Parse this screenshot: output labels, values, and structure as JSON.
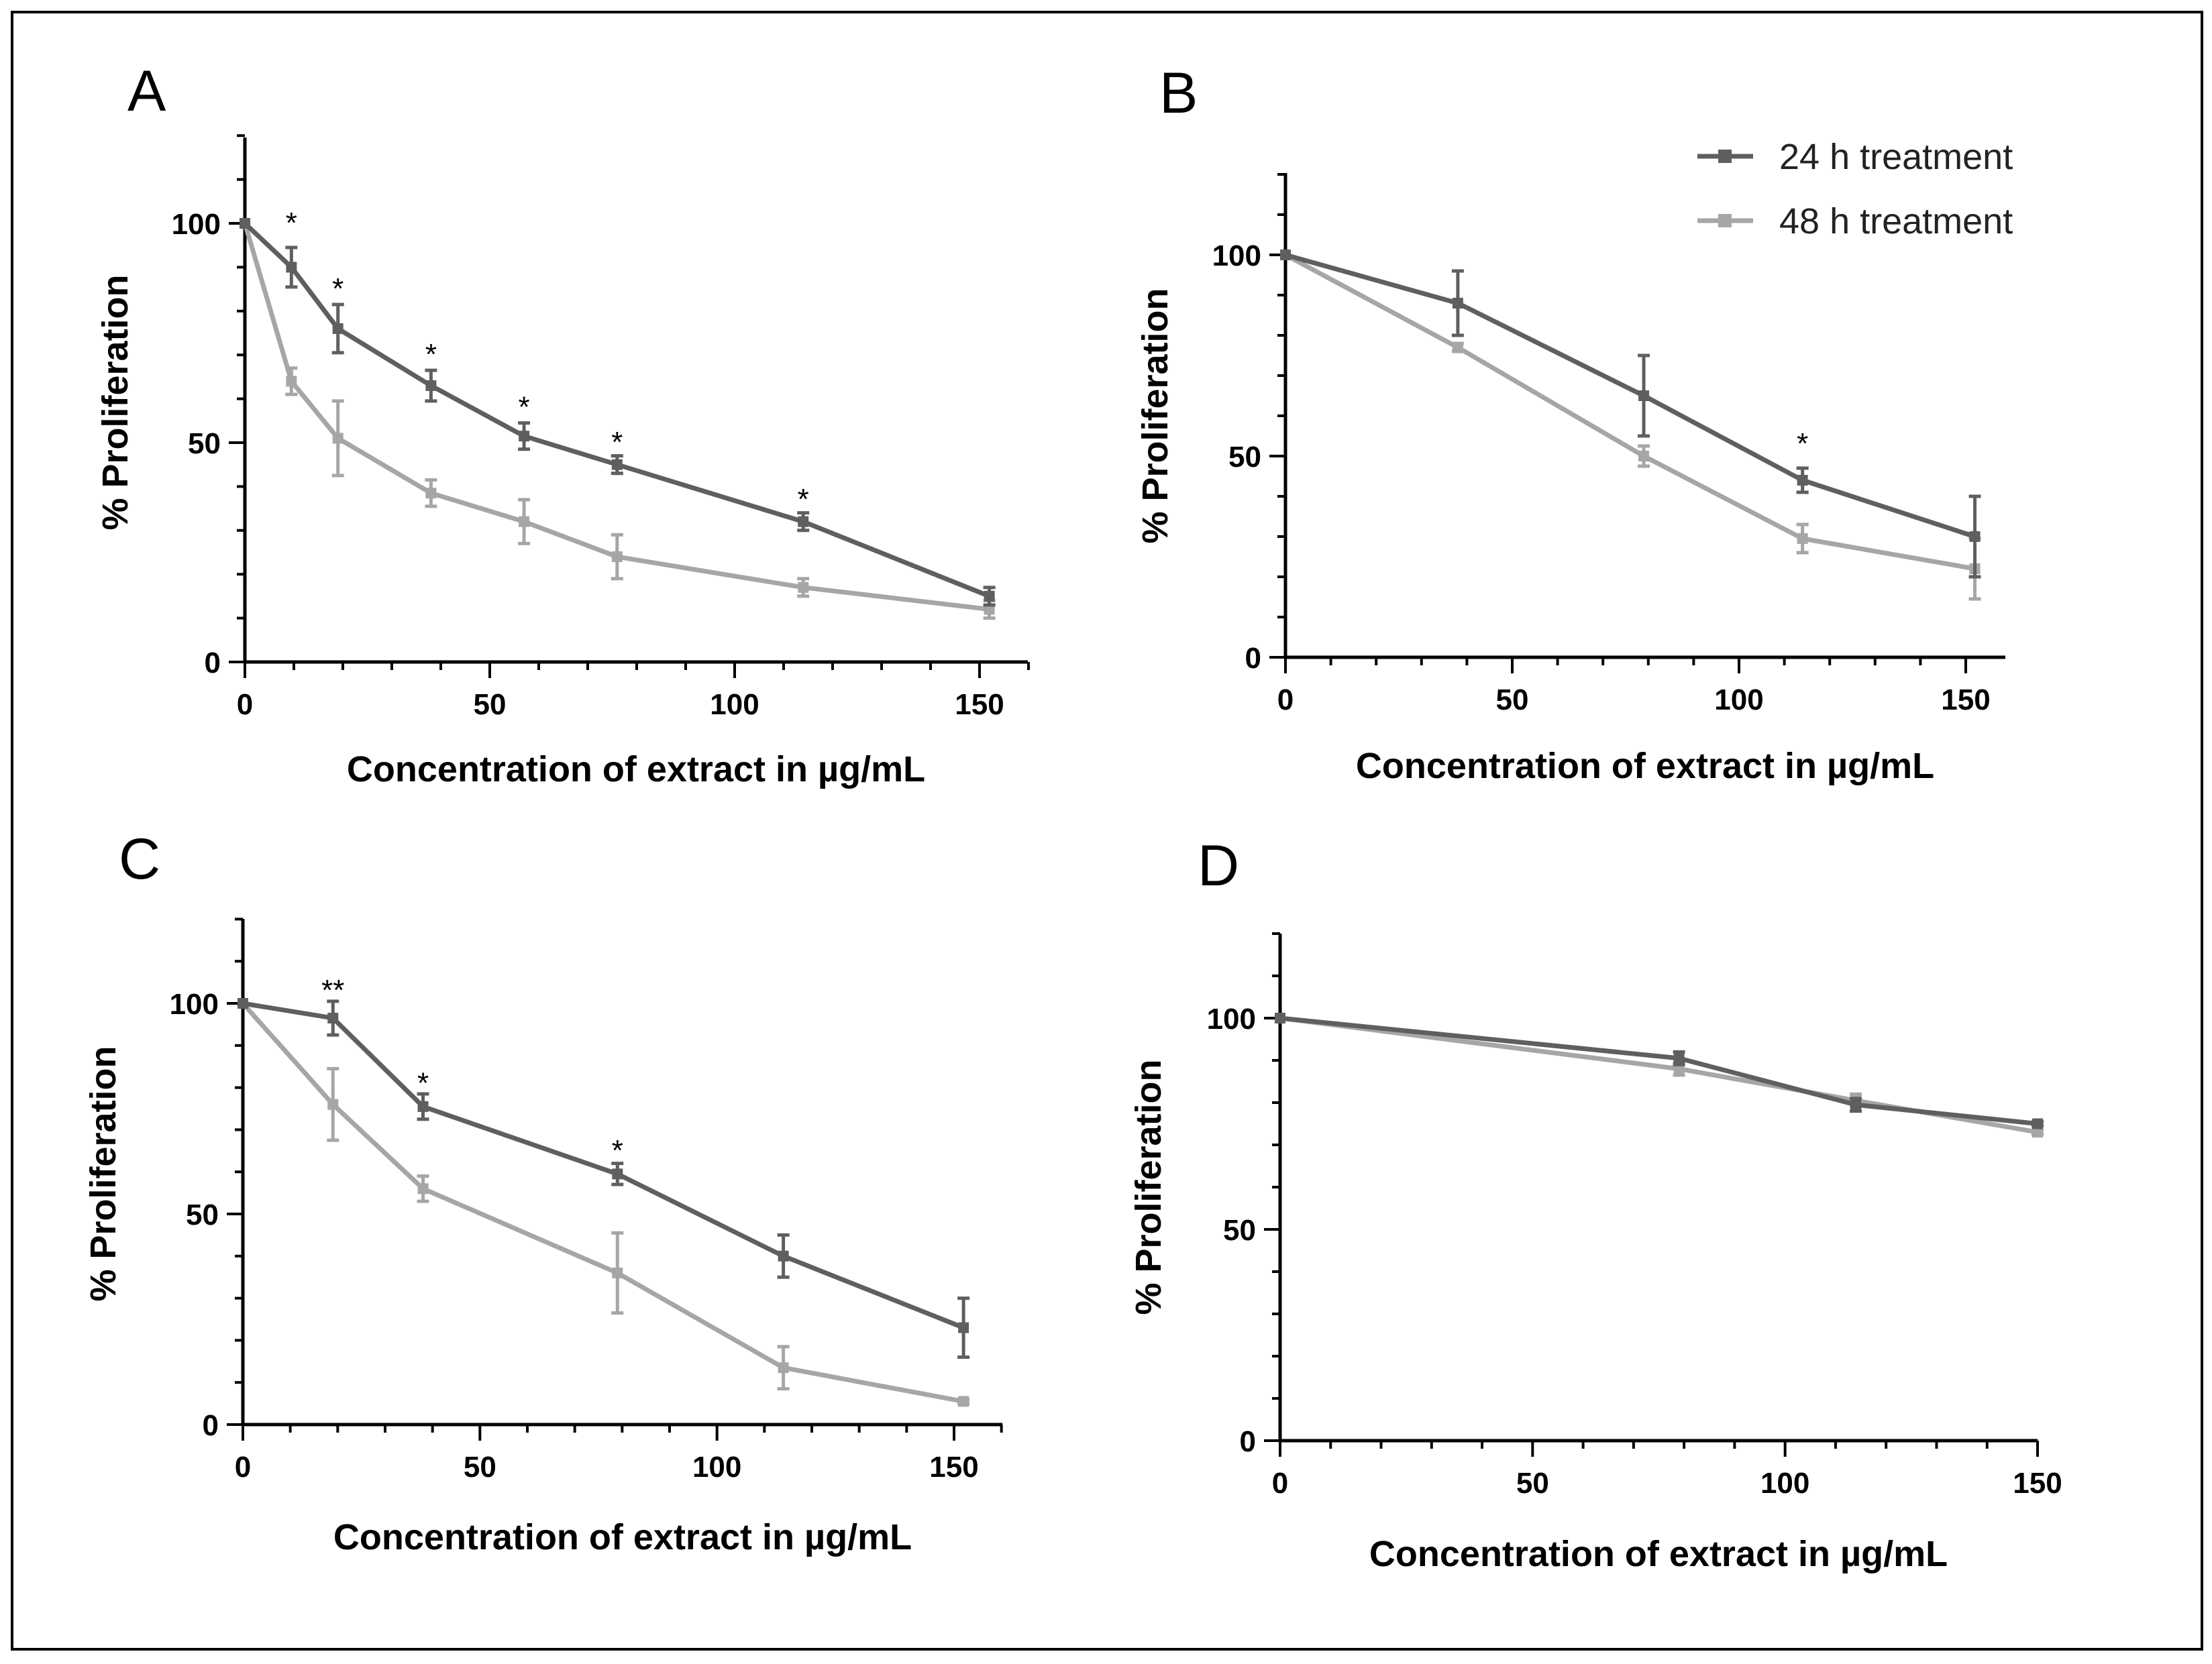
{
  "chart_data": [
    {
      "panel": "A",
      "type": "line",
      "xlabel": "Concentration of extract in µg/mL",
      "ylabel": "% Proliferation",
      "xlim": [
        0,
        160
      ],
      "ylim": [
        0,
        120
      ],
      "xticks": [
        0,
        50,
        100,
        150
      ],
      "yticks": [
        0,
        50,
        100
      ],
      "x_tick_labels": [
        "0",
        "50",
        "100",
        "150"
      ],
      "y_tick_labels": [
        "0",
        "50",
        "100"
      ],
      "series": [
        {
          "name": "24 h treatment",
          "color": "#5f5f5f",
          "x": [
            0,
            9.5,
            19,
            38,
            57,
            76,
            114,
            152
          ],
          "y": [
            100,
            90,
            76,
            63,
            51.5,
            45,
            32,
            15
          ],
          "err": [
            0,
            4.5,
            5.5,
            3.5,
            3,
            2,
            2,
            2
          ]
        },
        {
          "name": "48 h treatment",
          "color": "#a6a6a6",
          "x": [
            0,
            9.5,
            19,
            38,
            57,
            76,
            114,
            152
          ],
          "y": [
            100,
            64,
            51,
            38.5,
            32,
            24,
            17,
            12
          ],
          "err": [
            0,
            3,
            8.5,
            3,
            5,
            5,
            2,
            2
          ]
        }
      ],
      "annotations": [
        {
          "x": 9.5,
          "y": 100,
          "text": "*"
        },
        {
          "x": 19,
          "y": 85,
          "text": "*"
        },
        {
          "x": 38,
          "y": 70,
          "text": "*"
        },
        {
          "x": 57,
          "y": 58,
          "text": "*"
        },
        {
          "x": 76,
          "y": 50,
          "text": "*"
        },
        {
          "x": 114,
          "y": 37,
          "text": "*"
        }
      ]
    },
    {
      "panel": "B",
      "type": "line",
      "xlabel": "Concentration of extract in µg/mL",
      "ylabel": "% Proliferation",
      "xlim": [
        0,
        160
      ],
      "ylim": [
        0,
        120
      ],
      "xticks": [
        0,
        50,
        100,
        150
      ],
      "yticks": [
        0,
        50,
        100
      ],
      "x_tick_labels": [
        "0",
        "50",
        "100",
        "150"
      ],
      "y_tick_labels": [
        "0",
        "50",
        "100"
      ],
      "series": [
        {
          "name": "24 h treatment",
          "color": "#5f5f5f",
          "x": [
            0,
            38,
            79,
            114,
            152
          ],
          "y": [
            100,
            88,
            65,
            44,
            30
          ],
          "err": [
            0,
            8,
            10,
            3,
            10
          ]
        },
        {
          "name": "48 h treatment",
          "color": "#a6a6a6",
          "x": [
            0,
            38,
            79,
            114,
            152
          ],
          "y": [
            100,
            77,
            50,
            29.5,
            22
          ],
          "err": [
            0,
            1,
            2.5,
            3.5,
            7.5
          ]
        }
      ],
      "annotations": [
        {
          "x": 114,
          "y": 53,
          "text": "*"
        }
      ]
    },
    {
      "panel": "C",
      "type": "line",
      "xlabel": "Concentration of extract in µg/mL",
      "ylabel": "% Proliferation",
      "xlim": [
        0,
        160
      ],
      "ylim": [
        0,
        120
      ],
      "xticks": [
        0,
        50,
        100,
        150
      ],
      "yticks": [
        0,
        50,
        100
      ],
      "x_tick_labels": [
        "0",
        "50",
        "100",
        "150"
      ],
      "y_tick_labels": [
        "0",
        "50",
        "100"
      ],
      "series": [
        {
          "name": "24 h treatment",
          "color": "#5f5f5f",
          "x": [
            0,
            19,
            38,
            79,
            114,
            152
          ],
          "y": [
            100,
            96.5,
            75.5,
            59.5,
            40,
            23
          ],
          "err": [
            0,
            4,
            3,
            2.5,
            5,
            7
          ]
        },
        {
          "name": "48 h treatment",
          "color": "#a6a6a6",
          "x": [
            0,
            19,
            38,
            79,
            114,
            152
          ],
          "y": [
            100,
            76,
            56,
            36,
            13.5,
            5.5
          ],
          "err": [
            0,
            8.5,
            3,
            9.5,
            5,
            0.5
          ]
        }
      ],
      "annotations": [
        {
          "x": 19,
          "y": 103,
          "text": "**"
        },
        {
          "x": 38,
          "y": 81,
          "text": "*"
        },
        {
          "x": 79,
          "y": 65,
          "text": "*"
        }
      ]
    },
    {
      "panel": "D",
      "type": "line",
      "xlabel": "Concentration of extract in µg/mL",
      "ylabel": "% Proliferation",
      "xlim": [
        0,
        150
      ],
      "ylim": [
        0,
        120
      ],
      "xticks": [
        0,
        50,
        100,
        150
      ],
      "yticks": [
        0,
        50,
        100
      ],
      "x_tick_labels": [
        "0",
        "50",
        "100",
        "150"
      ],
      "y_tick_labels": [
        "0",
        "50",
        "100"
      ],
      "series": [
        {
          "name": "24 h treatment",
          "color": "#5f5f5f",
          "x": [
            0,
            79,
            114,
            150
          ],
          "y": [
            100,
            90.5,
            79.5,
            75
          ],
          "err": [
            0,
            1.5,
            1.5,
            0.5
          ]
        },
        {
          "name": "48 h treatment",
          "color": "#a6a6a6",
          "x": [
            0,
            79,
            114,
            150
          ],
          "y": [
            100,
            88,
            80.5,
            73
          ],
          "err": [
            0,
            1.5,
            1.5,
            0.5
          ]
        }
      ],
      "annotations": []
    }
  ],
  "legend": {
    "items": [
      {
        "label": "24 h treatment",
        "color": "#5f5f5f"
      },
      {
        "label": "48 h treatment",
        "color": "#a6a6a6"
      }
    ]
  }
}
